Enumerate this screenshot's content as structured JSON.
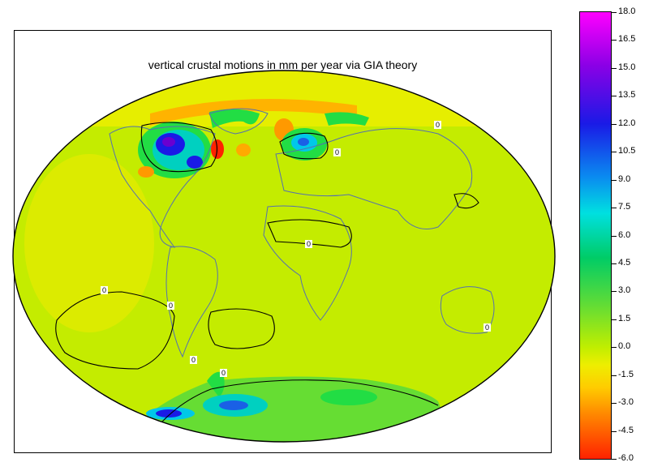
{
  "title": "vertical crustal motions in mm per year via GIA theory",
  "contour_label": "0",
  "colorbar": {
    "ticks": [
      "18.0",
      "16.5",
      "15.0",
      "13.5",
      "12.0",
      "10.5",
      "9.0",
      "7.5",
      "6.0",
      "4.5",
      "3.0",
      "1.5",
      "0.0",
      "-1.5",
      "-3.0",
      "-4.5",
      "-6.0"
    ]
  },
  "colors": {
    "base": "#c4ec00",
    "positive_high": "#1a1ae6",
    "positive_mid": "#00d0c0",
    "positive_low": "#22dd44",
    "negative": "#ff9900",
    "negative_strong": "#ff2200",
    "coast": "#5570b0"
  }
}
